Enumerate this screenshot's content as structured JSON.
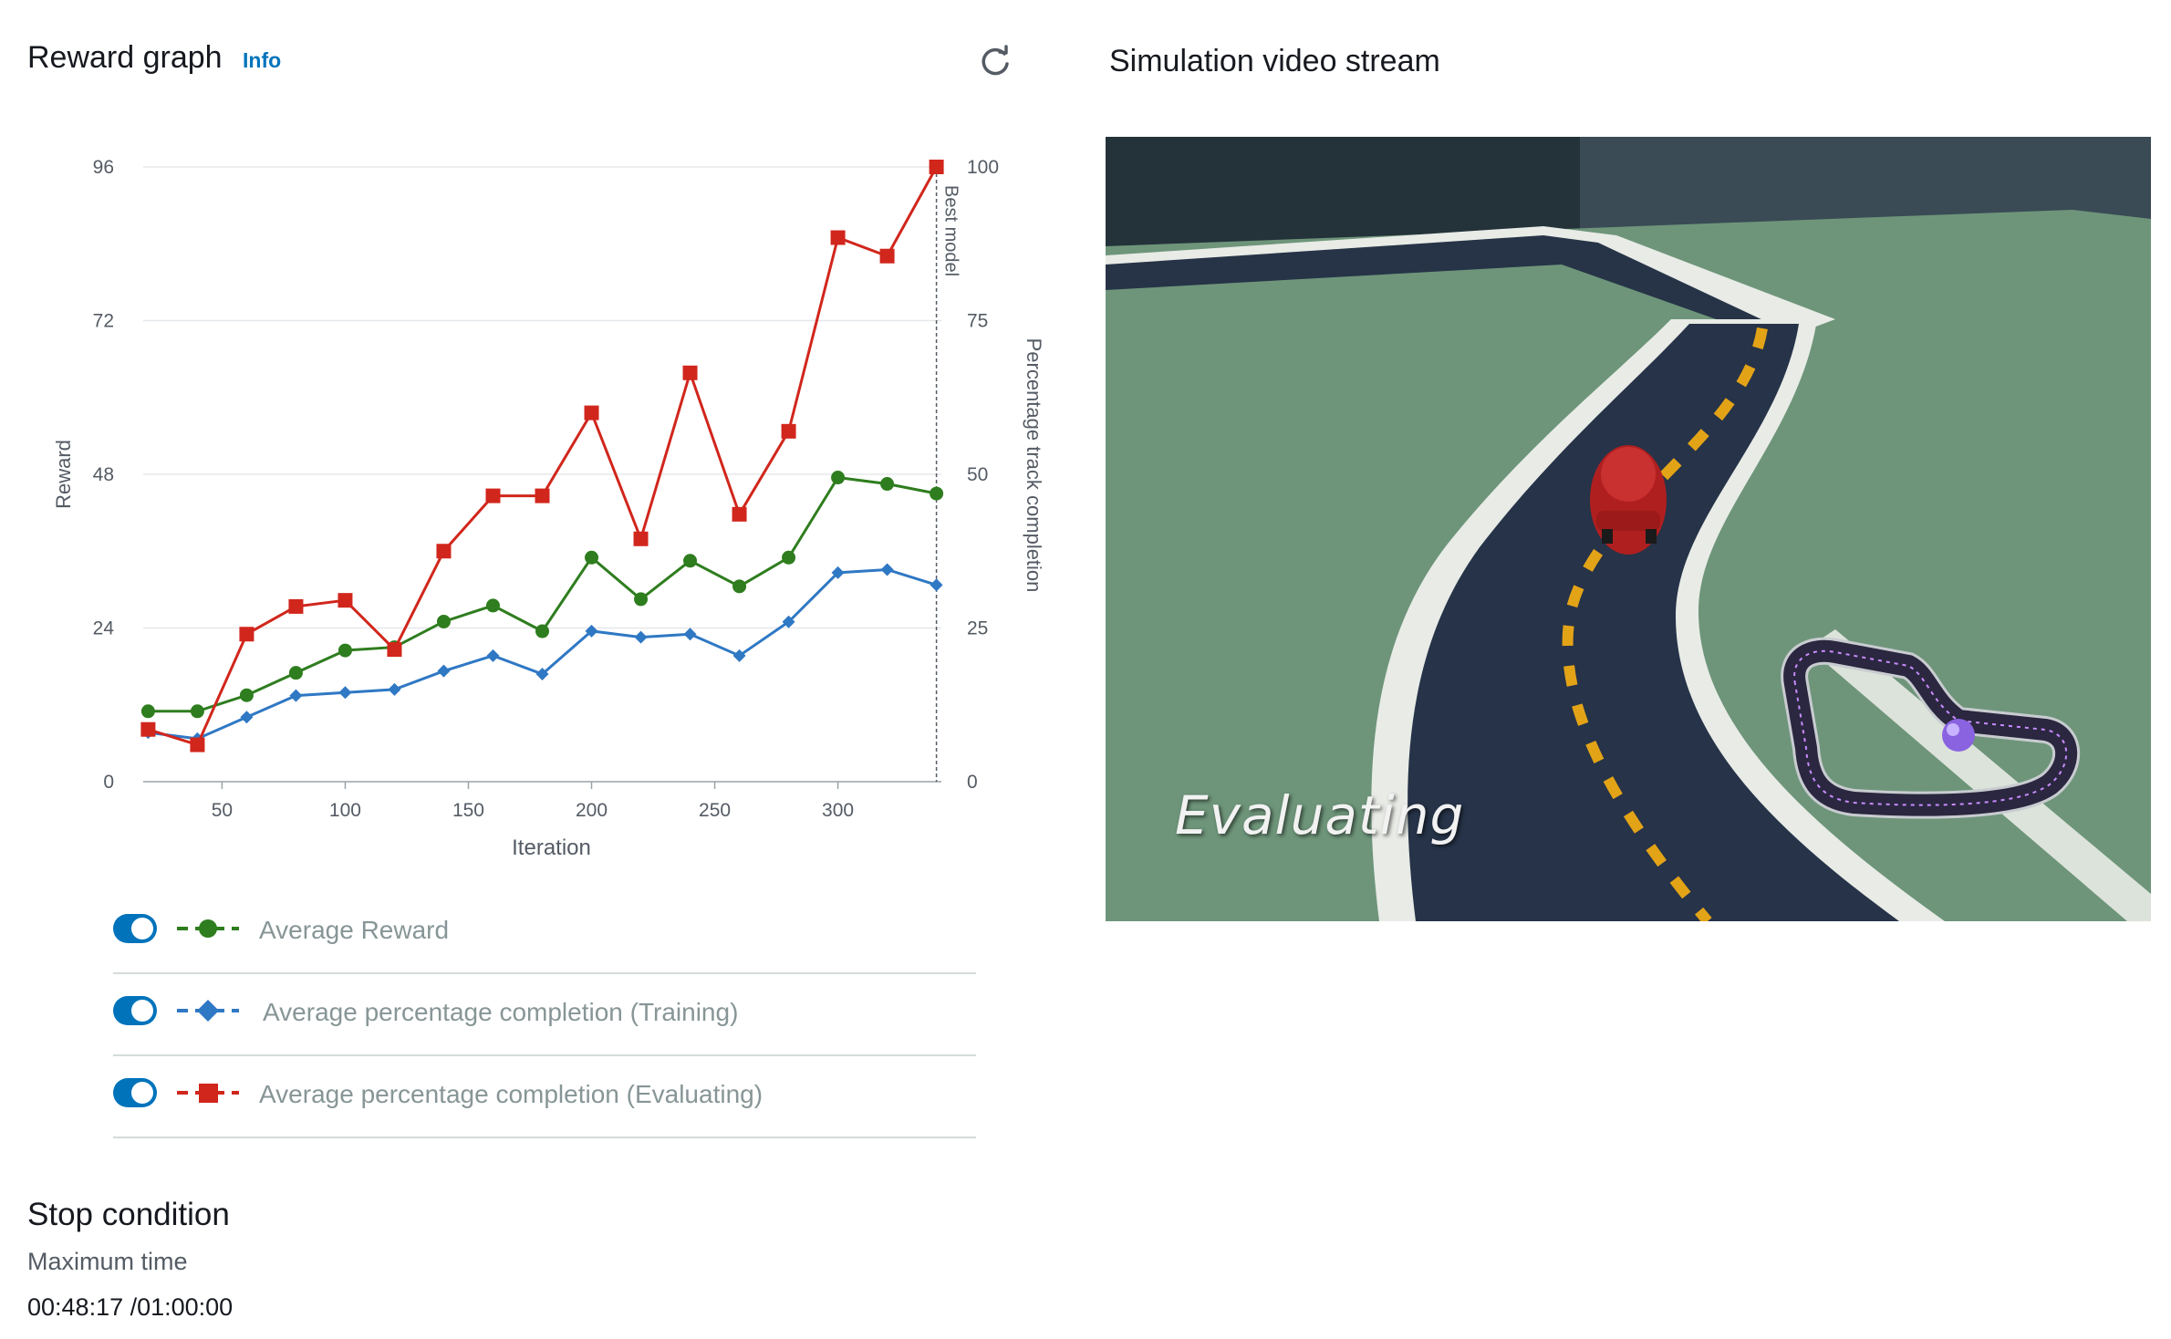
{
  "reward_section": {
    "title": "Reward graph",
    "info_label": "Info",
    "refresh_icon": "refresh-icon"
  },
  "video_section": {
    "title": "Simulation video stream",
    "overlay_text": "Evaluating"
  },
  "legend": [
    {
      "label": "Average Reward",
      "color": "#2e7d1e",
      "marker": "circle",
      "enabled": true
    },
    {
      "label": "Average percentage completion (Training)",
      "color": "#2f78c4",
      "marker": "diamond",
      "enabled": true
    },
    {
      "label": "Average percentage completion (Evaluating)",
      "color": "#d1261c",
      "marker": "square",
      "enabled": true
    }
  ],
  "chart_data": {
    "type": "line",
    "xlabel": "Iteration",
    "ylabel": "Reward",
    "y2label": "Percentage track completion",
    "xlim": [
      18,
      342
    ],
    "ylim": [
      0,
      96
    ],
    "y2lim": [
      0,
      100
    ],
    "xticks": [
      50,
      100,
      150,
      200,
      250,
      300
    ],
    "yticks": [
      0,
      24,
      48,
      72,
      96
    ],
    "y2ticks": [
      0,
      25,
      50,
      75,
      100
    ],
    "grid": true,
    "marker_line": {
      "x": 340,
      "label": "Best model"
    },
    "x": [
      20,
      40,
      60,
      80,
      100,
      120,
      140,
      160,
      180,
      200,
      220,
      240,
      260,
      280,
      300,
      320,
      340
    ],
    "series": [
      {
        "name": "Average Reward",
        "axis": "left",
        "color": "#2e7d1e",
        "values": [
          11,
          11,
          13.5,
          17,
          20.5,
          21,
          25,
          27.5,
          23.5,
          35,
          28.5,
          34.5,
          30.5,
          35,
          47.5,
          46.5,
          45
        ]
      },
      {
        "name": "Average percentage completion (Training)",
        "axis": "right",
        "color": "#2f78c4",
        "values": [
          8,
          7,
          10.5,
          14,
          14.5,
          15,
          18,
          20.5,
          17.5,
          24.5,
          23.5,
          24,
          20.5,
          26,
          34,
          34.5,
          32
        ]
      },
      {
        "name": "Average percentage completion (Evaluating)",
        "axis": "right",
        "color": "#d1261c",
        "values": [
          8.5,
          6,
          24,
          28.5,
          29.5,
          21.5,
          37.5,
          46.5,
          46.5,
          60,
          39.5,
          66.5,
          43.5,
          57,
          88.5,
          85.5,
          100
        ]
      }
    ]
  },
  "stop_condition": {
    "title": "Stop condition",
    "label": "Maximum time",
    "value": "00:48:17 /01:00:00"
  }
}
